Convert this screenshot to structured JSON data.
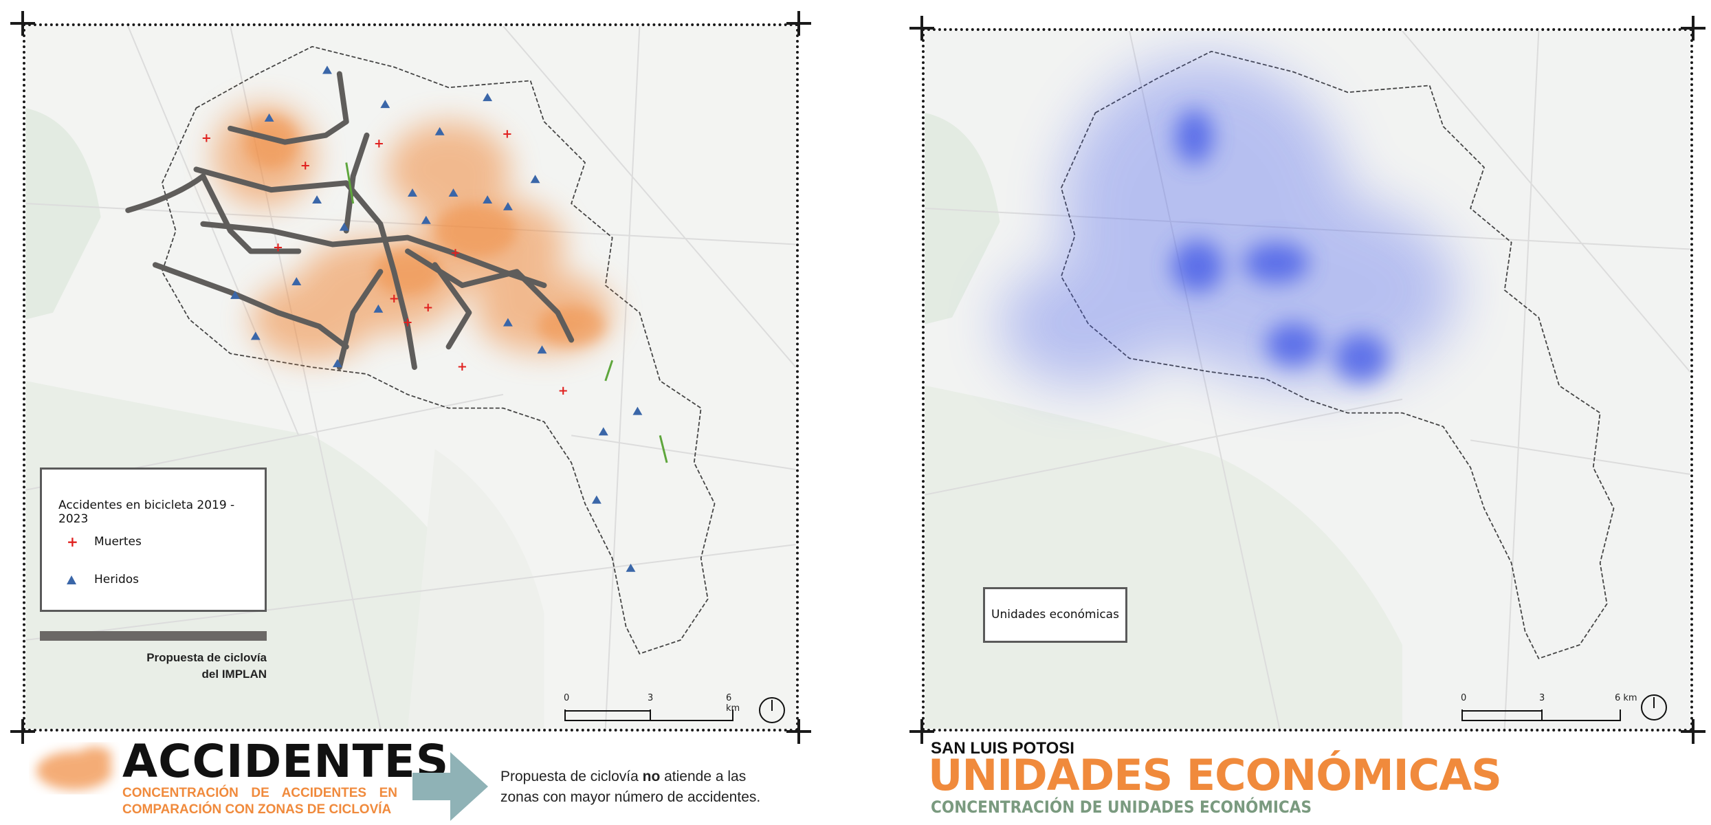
{
  "left_map": {
    "legend": {
      "title": "Accidentes en bicicleta 2019 - 2023",
      "items": [
        {
          "label": "Muertes",
          "color": "#e0211f",
          "symbol": "cross-icon"
        },
        {
          "label": "Heridos",
          "color": "#3a66a8",
          "symbol": "triangle-icon"
        }
      ]
    },
    "bike_lane_legend": {
      "line1": "Propuesta de ciclovía",
      "line2": "del IMPLAN",
      "color": "#6b6866"
    },
    "scale": {
      "t0": "0",
      "t1": "3",
      "t2": "6 km"
    }
  },
  "right_map": {
    "legend": {
      "title": "Unidades económicas"
    },
    "scale": {
      "t0": "0",
      "t1": "3",
      "t2": "6 km"
    }
  },
  "bottom_left": {
    "title": "ACCIDENTES",
    "subtitle": "CONCENTRACIÓN DE ACCIDENTES EN COMPARACIÓN CON ZONAS DE CICLOVÍA",
    "note_pre": "Propuesta de ciclovía ",
    "note_bold": "no",
    "note_post": " atiende a las",
    "note_line2": "zonas con mayor número de accidentes."
  },
  "bottom_right": {
    "city": "SAN LUIS POTOSI",
    "title": "UNIDADES ECONÓMICAS",
    "subtitle": "CONCENTRACIÓN DE UNIDADES ECONÓMICAS"
  },
  "colors": {
    "accent": "#f08a3c",
    "muertes": "#e0211f",
    "heridos": "#3a66a8",
    "heat_blue": "#3d55e6",
    "sub_green": "#7a9a7f"
  }
}
